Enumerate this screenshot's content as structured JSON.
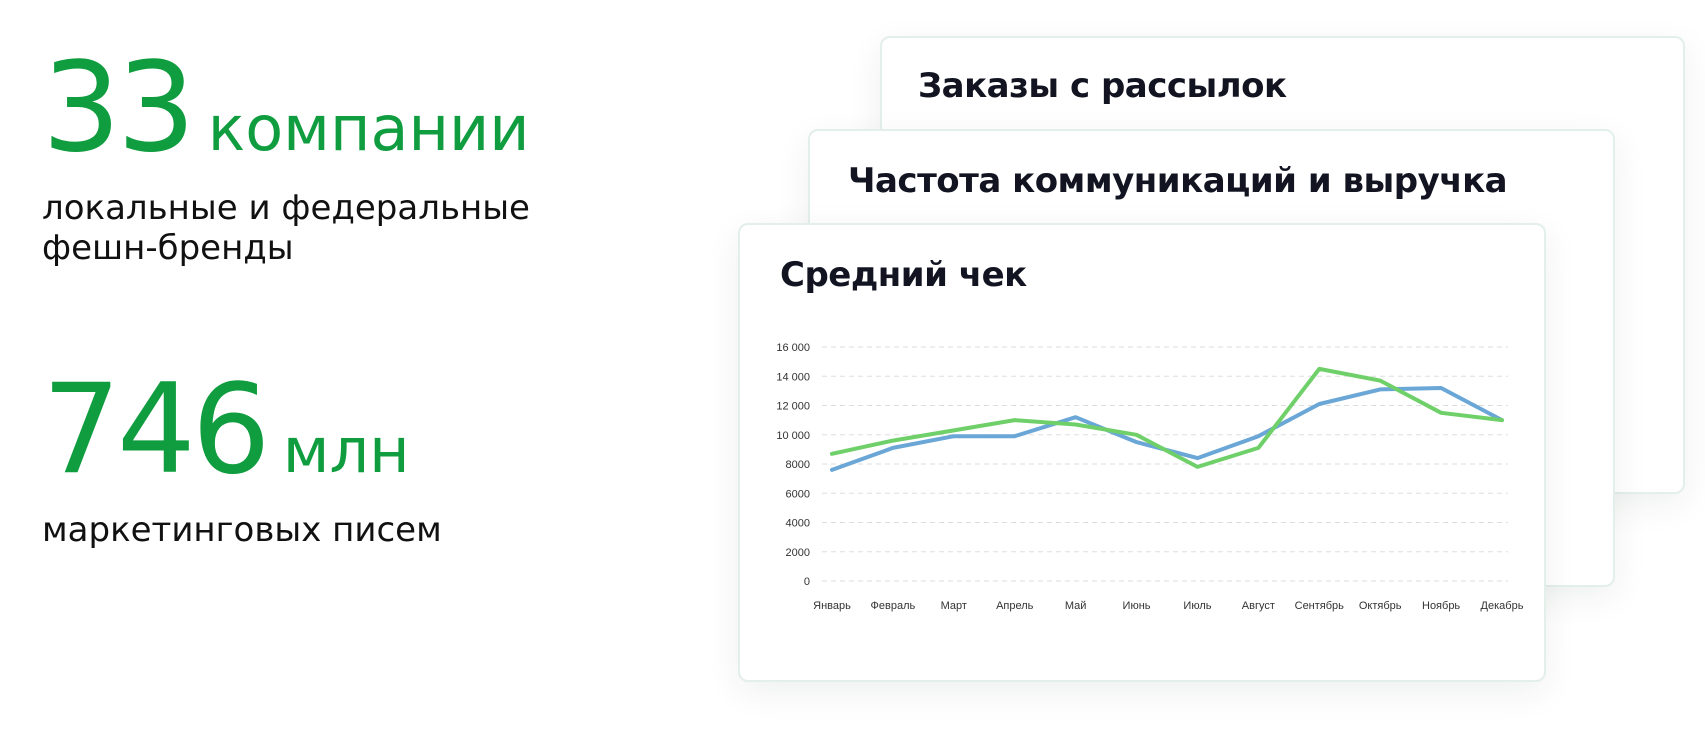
{
  "stats": [
    {
      "number": "33",
      "unit": "компании",
      "description": "локальные и федеральные фешн-бренды"
    },
    {
      "number": "746",
      "unit": "млн",
      "description": "маркетинговых писем"
    }
  ],
  "cards": {
    "back2_title": "Заказы с рассылок",
    "back1_title": "Частота коммуникаций и выручка",
    "front_title": "Средний чек"
  },
  "colors": {
    "accent": "#0f9d3f",
    "series_blue": "#6aa6d6",
    "series_green": "#6fd06a",
    "grid": "#dddddd",
    "title": "#121521"
  },
  "chart_data": {
    "type": "line",
    "title": "Средний чек",
    "xlabel": "",
    "ylabel": "",
    "ylim": [
      0,
      16000
    ],
    "y_ticks": [
      {
        "value": 0,
        "label": "0"
      },
      {
        "value": 2000,
        "label": "2000"
      },
      {
        "value": 4000,
        "label": "4000"
      },
      {
        "value": 6000,
        "label": "6000"
      },
      {
        "value": 8000,
        "label": "8000"
      },
      {
        "value": 10000,
        "label": "10 000"
      },
      {
        "value": 12000,
        "label": "12 000"
      },
      {
        "value": 14000,
        "label": "14 000"
      },
      {
        "value": 16000,
        "label": "16 000"
      }
    ],
    "categories": [
      "Январь",
      "Февраль",
      "Март",
      "Апрель",
      "Май",
      "Июнь",
      "Июль",
      "Август",
      "Сентябрь",
      "Октябрь",
      "Ноябрь",
      "Декабрь"
    ],
    "grid": true,
    "legend": "none",
    "series": [
      {
        "color": "#6aa6d6",
        "values": [
          7600,
          9100,
          9900,
          9900,
          11200,
          9500,
          8400,
          9900,
          12100,
          13100,
          13200,
          11000
        ]
      },
      {
        "color": "#6fd06a",
        "values": [
          8700,
          9600,
          10300,
          11000,
          10700,
          10000,
          7800,
          9100,
          14500,
          13700,
          11500,
          11000
        ]
      }
    ]
  }
}
